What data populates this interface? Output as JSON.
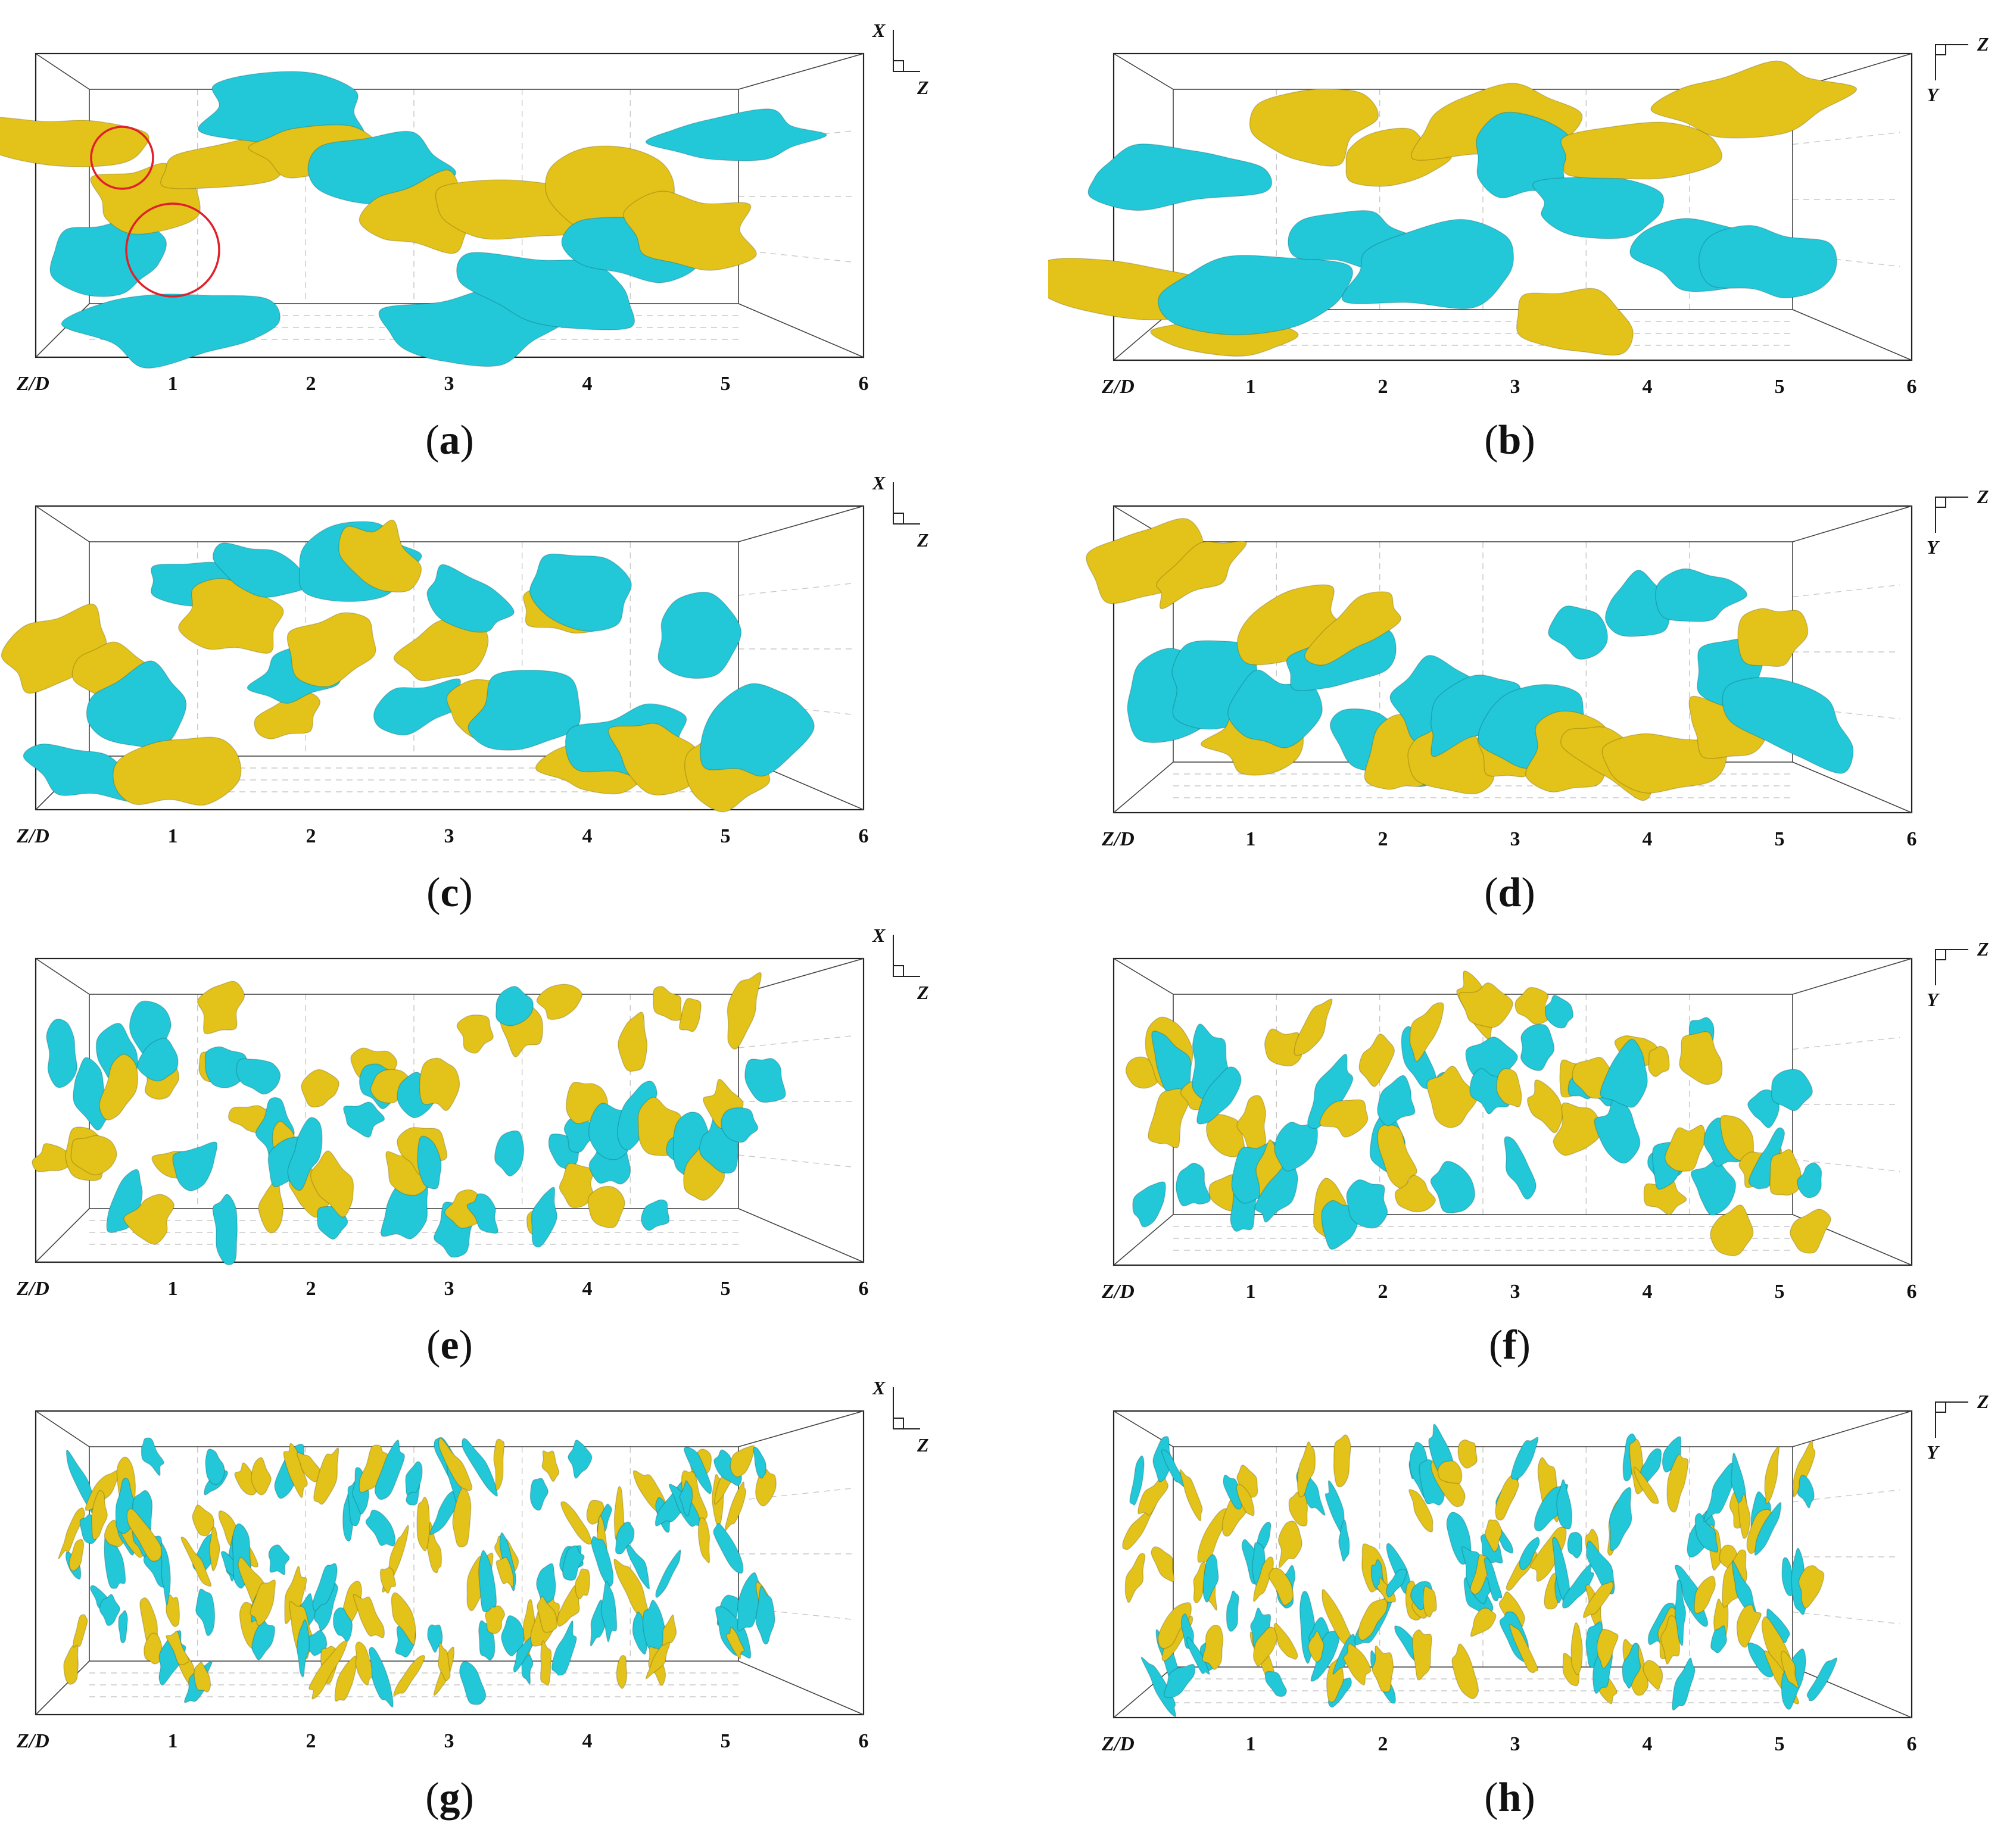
{
  "colors": {
    "positive_isosurface": "#e3c21a",
    "negative_isosurface": "#22c8d8",
    "highlight_circle": "#e0202a",
    "axis": "#222222"
  },
  "panels": [
    {
      "id": "a",
      "label": "a",
      "view": "top",
      "axis_title": "Z/D",
      "ticks": [
        "1",
        "2",
        "3",
        "4",
        "5",
        "6"
      ],
      "triad_vertical": "X",
      "triad_horizontal": "Z",
      "structure_scale": "large",
      "highlight_circles": 2
    },
    {
      "id": "b",
      "label": "b",
      "view": "side",
      "axis_title": "Z/D",
      "ticks": [
        "1",
        "2",
        "3",
        "4",
        "5",
        "6"
      ],
      "triad_vertical": "Y",
      "triad_horizontal": "Z",
      "structure_scale": "large",
      "highlight_circles": 0
    },
    {
      "id": "c",
      "label": "c",
      "view": "top",
      "axis_title": "Z/D",
      "ticks": [
        "1",
        "2",
        "3",
        "4",
        "5",
        "6"
      ],
      "triad_vertical": "X",
      "triad_horizontal": "Z",
      "structure_scale": "medium-large",
      "highlight_circles": 0
    },
    {
      "id": "d",
      "label": "d",
      "view": "side",
      "axis_title": "Z/D",
      "ticks": [
        "1",
        "2",
        "3",
        "4",
        "5",
        "6"
      ],
      "triad_vertical": "Y",
      "triad_horizontal": "Z",
      "structure_scale": "medium-large",
      "highlight_circles": 0
    },
    {
      "id": "e",
      "label": "e",
      "view": "top",
      "axis_title": "Z/D",
      "ticks": [
        "1",
        "2",
        "3",
        "4",
        "5",
        "6"
      ],
      "triad_vertical": "X",
      "triad_horizontal": "Z",
      "structure_scale": "medium",
      "highlight_circles": 0
    },
    {
      "id": "f",
      "label": "f",
      "view": "side",
      "axis_title": "Z/D",
      "ticks": [
        "1",
        "2",
        "3",
        "4",
        "5",
        "6"
      ],
      "triad_vertical": "Y",
      "triad_horizontal": "Z",
      "structure_scale": "medium",
      "highlight_circles": 0
    },
    {
      "id": "g",
      "label": "g",
      "view": "top",
      "axis_title": "Z/D",
      "ticks": [
        "1",
        "2",
        "3",
        "4",
        "5",
        "6"
      ],
      "triad_vertical": "X",
      "triad_horizontal": "Z",
      "structure_scale": "small",
      "highlight_circles": 0
    },
    {
      "id": "h",
      "label": "h",
      "view": "side",
      "axis_title": "Z/D",
      "ticks": [
        "1",
        "2",
        "3",
        "4",
        "5",
        "6"
      ],
      "triad_vertical": "Y",
      "triad_horizontal": "Z",
      "structure_scale": "small",
      "highlight_circles": 0
    }
  ]
}
